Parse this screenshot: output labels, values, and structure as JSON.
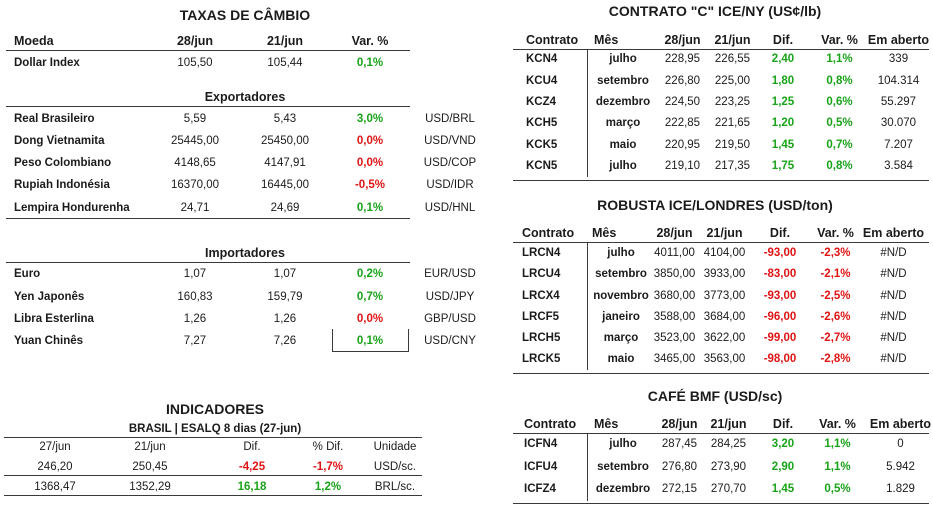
{
  "colors": {
    "positive": "#19a319",
    "negative": "#e01414",
    "text": "#1b1b1b",
    "rule": "#3a3a3a"
  },
  "fx": {
    "title": "TAXAS DE CÂMBIO",
    "headers": {
      "name": "Moeda",
      "d1": "28/jun",
      "d2": "21/jun",
      "var": "Var. %"
    },
    "dollar_index": {
      "name": "Dollar Index",
      "d1": "105,50",
      "d2": "105,44",
      "var": "0,1%"
    },
    "exporters_title": "Exportadores",
    "exporters": [
      {
        "name": "Real Brasileiro",
        "d1": "5,59",
        "d2": "5,43",
        "var": "3,0%",
        "pair": "USD/BRL"
      },
      {
        "name": "Dong Vietnamita",
        "d1": "25445,00",
        "d2": "25450,00",
        "var": "0,0%",
        "pair": "USD/VND"
      },
      {
        "name": "Peso Colombiano",
        "d1": "4148,65",
        "d2": "4147,91",
        "var": "0,0%",
        "pair": "USD/COP"
      },
      {
        "name": "Rupiah Indonésia",
        "d1": "16370,00",
        "d2": "16445,00",
        "var": "-0,5%",
        "pair": "USD/IDR"
      },
      {
        "name": "Lempira Hondurenha",
        "d1": "24,71",
        "d2": "24,69",
        "var": "0,1%",
        "pair": "USD/HNL"
      }
    ],
    "importers_title": "Importadores",
    "importers": [
      {
        "name": "Euro",
        "d1": "1,07",
        "d2": "1,07",
        "var": "0,2%",
        "pair": "EUR/USD"
      },
      {
        "name": "Yen Japonês",
        "d1": "160,83",
        "d2": "159,79",
        "var": "0,7%",
        "pair": "USD/JPY"
      },
      {
        "name": "Libra Esterlina",
        "d1": "1,26",
        "d2": "1,26",
        "var": "0,0%",
        "pair": "GBP/USD"
      },
      {
        "name": "Yuan Chinês",
        "d1": "7,27",
        "d2": "7,26",
        "var": "0,1%",
        "pair": "USD/CNY"
      }
    ]
  },
  "indicators": {
    "title": "INDICADORES",
    "subtitle": "BRASIL | ESALQ 8 dias (27-jun)",
    "headers": {
      "d1": "27/jun",
      "d2": "21/jun",
      "dif": "Dif.",
      "pct": "% Dif.",
      "unit": "Unidade"
    },
    "rows": [
      {
        "d1": "246,20",
        "d2": "250,45",
        "dif": "-4,25",
        "pct": "-1,7%",
        "unit": "USD/sc."
      },
      {
        "d1": "1368,47",
        "d2": "1352,29",
        "dif": "16,18",
        "pct": "1,2%",
        "unit": "BRL/sc."
      }
    ]
  },
  "arabica": {
    "title": "CONTRATO \"C\" ICE/NY (US¢/lb)",
    "headers": {
      "contract": "Contrato",
      "month": "Mês",
      "d1": "28/jun",
      "d2": "21/jun",
      "dif": "Dif.",
      "var": "Var. %",
      "oi": "Em aberto"
    },
    "rows": [
      {
        "contract": "KCN4",
        "month": "julho",
        "d1": "228,95",
        "d2": "226,55",
        "dif": "2,40",
        "var": "1,1%",
        "oi": "339"
      },
      {
        "contract": "KCU4",
        "month": "setembro",
        "d1": "226,80",
        "d2": "225,00",
        "dif": "1,80",
        "var": "0,8%",
        "oi": "104.314"
      },
      {
        "contract": "KCZ4",
        "month": "dezembro",
        "d1": "224,50",
        "d2": "223,25",
        "dif": "1,25",
        "var": "0,6%",
        "oi": "55.297"
      },
      {
        "contract": "KCH5",
        "month": "março",
        "d1": "222,85",
        "d2": "221,65",
        "dif": "1,20",
        "var": "0,5%",
        "oi": "30.070"
      },
      {
        "contract": "KCK5",
        "month": "maio",
        "d1": "220,95",
        "d2": "219,50",
        "dif": "1,45",
        "var": "0,7%",
        "oi": "7.207"
      },
      {
        "contract": "KCN5",
        "month": "julho",
        "d1": "219,10",
        "d2": "217,35",
        "dif": "1,75",
        "var": "0,8%",
        "oi": "3.584"
      }
    ]
  },
  "robusta": {
    "title": "ROBUSTA ICE/LONDRES (USD/ton)",
    "headers": {
      "contract": "Contrato",
      "month": "Mês",
      "d1": "28/jun",
      "d2": "21/jun",
      "dif": "Dif.",
      "var": "Var. %",
      "oi": "Em aberto"
    },
    "rows": [
      {
        "contract": "LRCN4",
        "month": "julho",
        "d1": "4011,00",
        "d2": "4104,00",
        "dif": "-93,00",
        "var": "-2,3%",
        "oi": "#N/D"
      },
      {
        "contract": "LRCU4",
        "month": "setembro",
        "d1": "3850,00",
        "d2": "3933,00",
        "dif": "-83,00",
        "var": "-2,1%",
        "oi": "#N/D"
      },
      {
        "contract": "LRCX4",
        "month": "novembro",
        "d1": "3680,00",
        "d2": "3773,00",
        "dif": "-93,00",
        "var": "-2,5%",
        "oi": "#N/D"
      },
      {
        "contract": "LRCF5",
        "month": "janeiro",
        "d1": "3588,00",
        "d2": "3684,00",
        "dif": "-96,00",
        "var": "-2,6%",
        "oi": "#N/D"
      },
      {
        "contract": "LRCH5",
        "month": "março",
        "d1": "3523,00",
        "d2": "3622,00",
        "dif": "-99,00",
        "var": "-2,7%",
        "oi": "#N/D"
      },
      {
        "contract": "LRCK5",
        "month": "maio",
        "d1": "3465,00",
        "d2": "3563,00",
        "dif": "-98,00",
        "var": "-2,8%",
        "oi": "#N/D"
      }
    ]
  },
  "bmf": {
    "title": "CAFÉ BMF (USD/sc)",
    "headers": {
      "contract": "Contrato",
      "month": "Mês",
      "d1": "28/jun",
      "d2": "21/jun",
      "dif": "Dif.",
      "var": "Var. %",
      "oi": "Em aberto"
    },
    "rows": [
      {
        "contract": "ICFN4",
        "month": "julho",
        "d1": "287,45",
        "d2": "284,25",
        "dif": "3,20",
        "var": "1,1%",
        "oi": "0"
      },
      {
        "contract": "ICFU4",
        "month": "setembro",
        "d1": "276,80",
        "d2": "273,90",
        "dif": "2,90",
        "var": "1,1%",
        "oi": "5.942"
      },
      {
        "contract": "ICFZ4",
        "month": "dezembro",
        "d1": "272,15",
        "d2": "270,70",
        "dif": "1,45",
        "var": "0,5%",
        "oi": "1.829"
      }
    ]
  }
}
